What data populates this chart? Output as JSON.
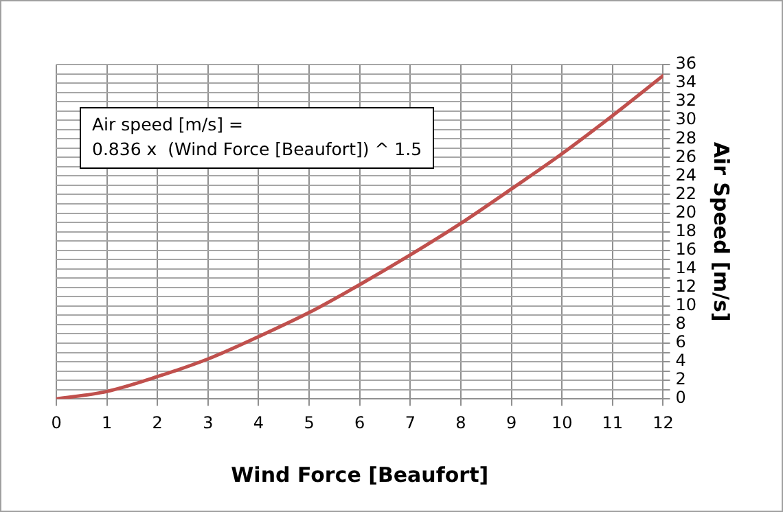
{
  "chart_data": {
    "type": "line",
    "xlabel": "Wind Force [Beaufort]",
    "ylabel": "Air Speed [m/s]",
    "annotations": [
      "Air speed [m/s] =\n0.836 x  (Wind Force [Beaufort]) ^ 1.5"
    ],
    "x": [
      0,
      1,
      2,
      3,
      4,
      5,
      6,
      7,
      8,
      9,
      10,
      11,
      12
    ],
    "series": [
      {
        "color": "#c0504d",
        "values": [
          0,
          0.8,
          2.4,
          4.3,
          6.7,
          9.3,
          12.3,
          15.5,
          18.9,
          22.6,
          26.4,
          30.5,
          34.8
        ]
      }
    ],
    "xlim": [
      0,
      12
    ],
    "xticks": [
      0,
      1,
      2,
      3,
      4,
      5,
      6,
      7,
      8,
      9,
      10,
      11,
      12
    ],
    "ylim": [
      0,
      36
    ],
    "yticks": [
      0,
      {
        "value": 1,
        "label": null
      },
      2,
      {
        "value": 3,
        "label": null
      },
      4,
      {
        "value": 5,
        "label": null
      },
      6,
      {
        "value": 7,
        "label": null
      },
      8,
      {
        "value": 9,
        "label": null
      },
      10,
      {
        "value": 11,
        "label": null
      },
      12,
      {
        "value": 13,
        "label": null
      },
      14,
      {
        "value": 15,
        "label": null
      },
      16,
      {
        "value": 17,
        "label": null
      },
      18,
      {
        "value": 19,
        "label": null
      },
      20,
      {
        "value": 21,
        "label": null
      },
      22,
      {
        "value": 23,
        "label": null
      },
      24,
      {
        "value": 25,
        "label": null
      },
      26,
      {
        "value": 27,
        "label": null
      },
      28,
      {
        "value": 29,
        "label": null
      },
      30,
      {
        "value": 31,
        "label": null
      },
      32,
      {
        "value": 33,
        "label": null
      },
      34,
      {
        "value": 35,
        "label": null
      },
      36
    ],
    "grid": true,
    "legend": false,
    "marker": "none",
    "line_style": "solid"
  }
}
